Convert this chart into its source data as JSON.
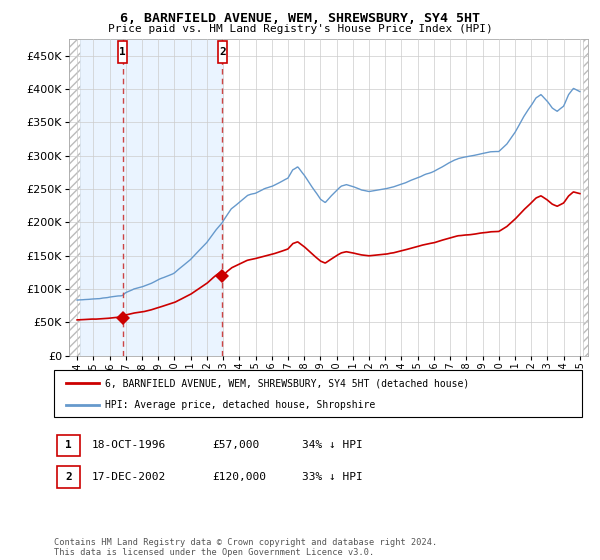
{
  "title": "6, BARNFIELD AVENUE, WEM, SHREWSBURY, SY4 5HT",
  "subtitle": "Price paid vs. HM Land Registry's House Price Index (HPI)",
  "sale1_date": 1996.8,
  "sale1_price": 57000,
  "sale1_label": "1",
  "sale2_date": 2002.96,
  "sale2_price": 120000,
  "sale2_label": "2",
  "legend_line1": "6, BARNFIELD AVENUE, WEM, SHREWSBURY, SY4 5HT (detached house)",
  "legend_line2": "HPI: Average price, detached house, Shropshire",
  "table_row1": [
    "1",
    "18-OCT-1996",
    "£57,000",
    "34% ↓ HPI"
  ],
  "table_row2": [
    "2",
    "17-DEC-2002",
    "£120,000",
    "33% ↓ HPI"
  ],
  "footer": "Contains HM Land Registry data © Crown copyright and database right 2024.\nThis data is licensed under the Open Government Licence v3.0.",
  "hpi_color": "#6699cc",
  "price_color": "#cc0000",
  "vline_color": "#cc4444",
  "shade_color": "#ddeeff",
  "hatch_color": "#cccccc",
  "xlim": [
    1993.5,
    2025.5
  ],
  "ylim": [
    0,
    475000
  ],
  "yticks": [
    0,
    50000,
    100000,
    150000,
    200000,
    250000,
    300000,
    350000,
    400000,
    450000
  ],
  "xticks": [
    1994,
    1995,
    1996,
    1997,
    1998,
    1999,
    2000,
    2001,
    2002,
    2003,
    2004,
    2005,
    2006,
    2007,
    2008,
    2009,
    2010,
    2011,
    2012,
    2013,
    2014,
    2015,
    2016,
    2017,
    2018,
    2019,
    2020,
    2021,
    2022,
    2023,
    2024,
    2025
  ]
}
